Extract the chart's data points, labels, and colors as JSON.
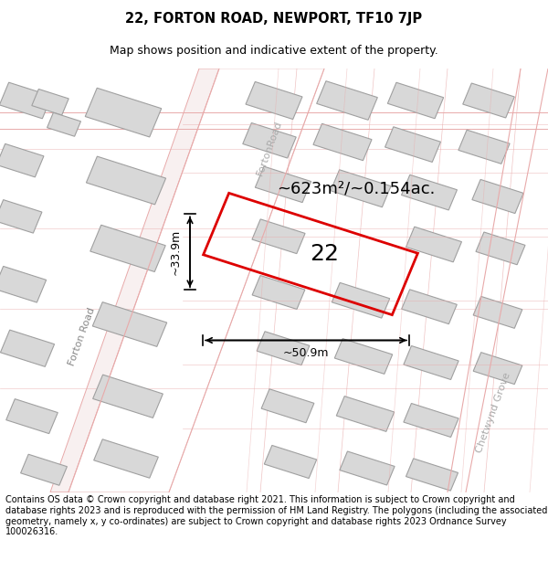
{
  "title": "22, FORTON ROAD, NEWPORT, TF10 7JP",
  "subtitle": "Map shows position and indicative extent of the property.",
  "footer": "Contains OS data © Crown copyright and database right 2021. This information is subject to Crown copyright and database rights 2023 and is reproduced with the permission of HM Land Registry. The polygons (including the associated geometry, namely x, y co-ordinates) are subject to Crown copyright and database rights 2023 Ordnance Survey 100026316.",
  "area_label": "~623m²/~0.154ac.",
  "plot_number": "22",
  "dim_width": "~50.9m",
  "dim_height": "~33.9m",
  "road_label_forton_left": "Forton Road",
  "road_label_forton_upper": "FortonRoad",
  "road_label_chetwynd": "Chetwynd Grove",
  "bg_color": "#ffffff",
  "map_bg": "#ffffff",
  "plot_edge_color": "#dd0000",
  "building_fill": "#d8d8d8",
  "building_edge": "#a0a0a0",
  "road_outline_color": "#e8aaaa",
  "road_fill_color": "#f5e5e5",
  "dim_color": "#000000",
  "title_fontsize": 10.5,
  "subtitle_fontsize": 9,
  "footer_fontsize": 7,
  "area_fontsize": 13,
  "plot_num_fontsize": 18,
  "road_label_fontsize": 8
}
